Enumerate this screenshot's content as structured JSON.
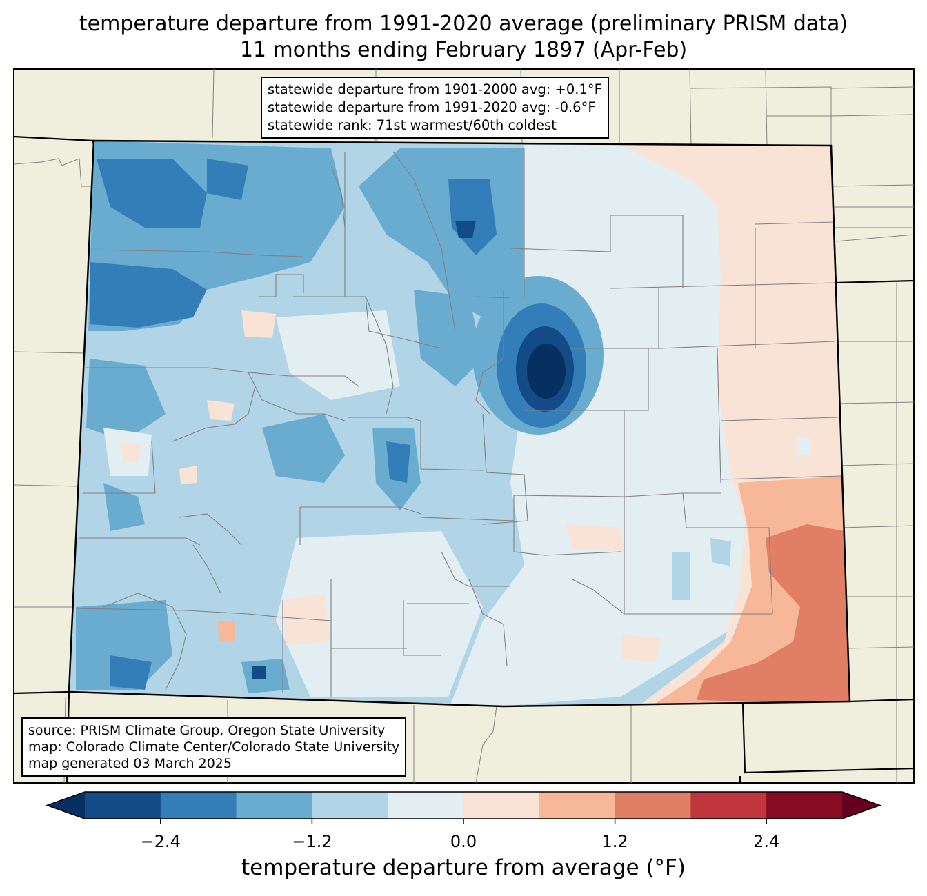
{
  "title": {
    "line1": "temperature departure from 1991-2020 average (preliminary PRISM data)",
    "line2": "11 months ending February 1897 (Apr-Feb)"
  },
  "stats": {
    "line1": "statewide departure from 1901-2000 avg: +0.1°F",
    "line2": "statewide departure from 1991-2020 avg: -0.6°F",
    "line3": "statewide rank: 71st warmest/60th coldest"
  },
  "source": {
    "line1": "source: PRISM Climate Group, Oregon State University",
    "line2": "map: Colorado Climate Center/Colorado State University",
    "line3": "map generated 03 March 2025"
  },
  "colorbar": {
    "label": "temperature departure from average (°F)",
    "ticks": [
      "−2.4",
      "−1.2",
      "0.0",
      "1.2",
      "2.4"
    ],
    "tick_values": [
      -2.4,
      -1.2,
      0.0,
      1.2,
      2.4
    ],
    "range": [
      -3.0,
      3.0
    ],
    "step": 0.6,
    "under_color": "#053061",
    "over_color": "#67001f",
    "colors": [
      "#134b87",
      "#337eb8",
      "#6aacd0",
      "#b1d4e7",
      "#e3eef3",
      "#f9e2d6",
      "#f7b799",
      "#e17f66",
      "#c0363c",
      "#870b24"
    ]
  },
  "map": {
    "background_color": "#f0eedc",
    "county_line_color": "#808080"
  }
}
